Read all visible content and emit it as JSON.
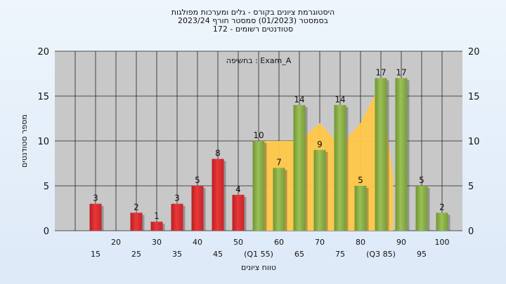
{
  "chart_data": {
    "type": "bar",
    "title_lines": [
      "היסטוגרמת ציונים בקורס - גלים ומערכות מפולגות",
      "בסמסטר  (01/2023)  סמסטר חורף  2023/24",
      "סטודנטים רשומים - 172"
    ],
    "annotation": "בחשיפה : Exam_A",
    "ylabel": "מספר סטודנטים",
    "xlabel": "טווח ציונים",
    "ylim": [
      0,
      20
    ],
    "yticks": [
      0,
      5,
      10,
      15,
      20
    ],
    "grid": true,
    "x_ticks_top": [
      "20",
      "30",
      "40",
      "50",
      "60",
      "70",
      "80",
      "90",
      "100"
    ],
    "x_ticks_bottom": [
      "15",
      "25",
      "35",
      "45",
      "(Q1 55)",
      "65",
      "75",
      "(Q3 85)",
      "95"
    ],
    "categories": [
      15,
      25,
      30,
      35,
      40,
      45,
      50,
      55,
      60,
      65,
      70,
      75,
      80,
      85,
      90,
      95,
      100
    ],
    "values": [
      3,
      2,
      1,
      3,
      5,
      8,
      4,
      10,
      7,
      14,
      9,
      14,
      5,
      17,
      17,
      5,
      2
    ],
    "bar_colors": {
      "red": "#e8383a",
      "green": "#9cc055"
    },
    "green_from": 55,
    "area_color": "#ffc84a",
    "area_series": [
      {
        "x": 55,
        "y": 10
      },
      {
        "x": 60,
        "y": 10
      },
      {
        "x": 65,
        "y": 10
      },
      {
        "x": 70,
        "y": 12
      },
      {
        "x": 75,
        "y": 9.5
      },
      {
        "x": 80,
        "y": 12
      },
      {
        "x": 85,
        "y": 16.5
      },
      {
        "x": 88,
        "y": 6
      }
    ]
  }
}
